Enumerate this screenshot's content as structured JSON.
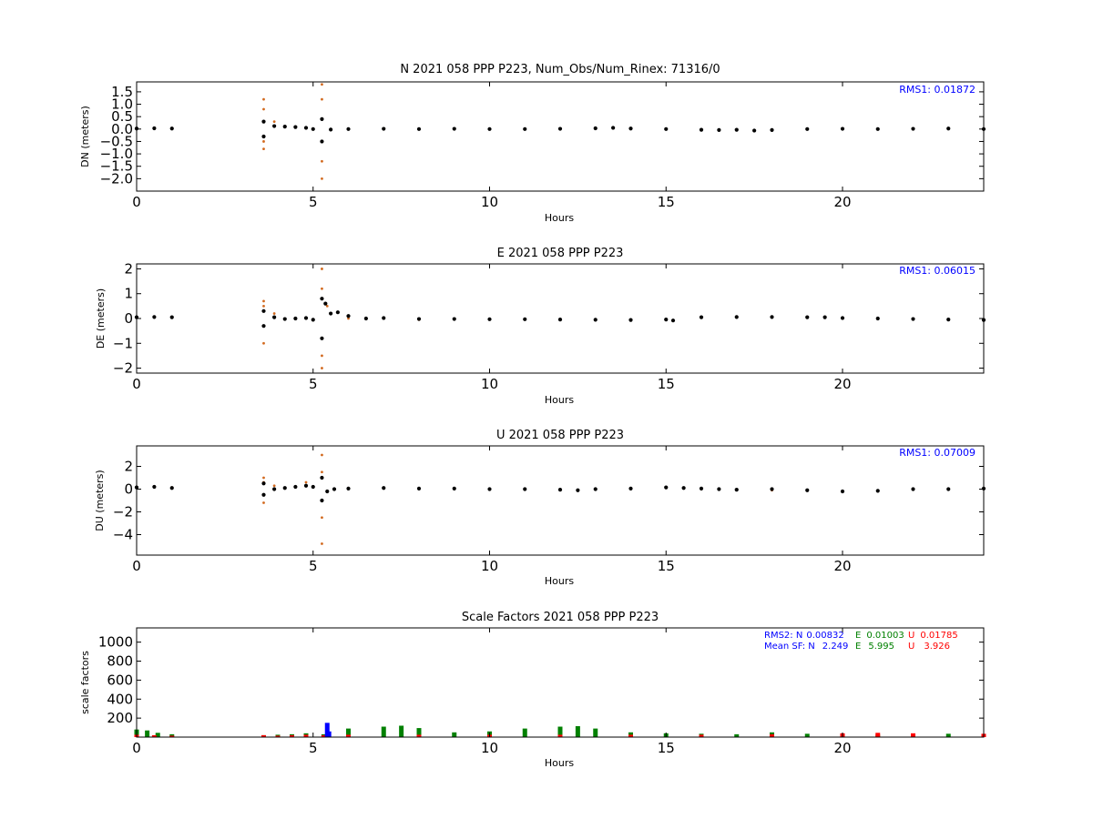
{
  "chart_data": [
    {
      "type": "scatter",
      "title": "N 2021 058 PPP  P223, Num_Obs/Num_Rinex: 71316/0",
      "xlabel": "Hours",
      "ylabel": "DN (meters)",
      "xlim": [
        0,
        24
      ],
      "ylim": [
        -2.5,
        1.9
      ],
      "xticks": [
        "0",
        "5",
        "10",
        "15",
        "20"
      ],
      "yticks": [
        "1.5",
        "1.0",
        "0.5",
        "0.0",
        "−0.5",
        "−1.0",
        "−1.5",
        "−2.0"
      ],
      "annotation": "RMS1:  0.01872",
      "series": [
        {
          "color": "#d2691e",
          "x": [
            0.0,
            0.5,
            1.0,
            3.6,
            3.6,
            3.6,
            3.6,
            3.9,
            5.25,
            5.25,
            5.25,
            5.25,
            7,
            9,
            12,
            13.5,
            16,
            17.5,
            20,
            22,
            24
          ],
          "y": [
            0.04,
            0.05,
            0.04,
            1.2,
            -0.8,
            0.8,
            -0.5,
            0.3,
            1.8,
            -2.0,
            1.2,
            -1.3,
            0.02,
            0.0,
            0.02,
            0.06,
            -0.04,
            -0.06,
            0.02,
            0.0,
            0.02
          ]
        },
        {
          "color": "#000000",
          "x": [
            0.0,
            0.5,
            1.0,
            3.6,
            3.6,
            3.9,
            4.2,
            4.5,
            4.8,
            5.0,
            5.25,
            5.25,
            5.5,
            6,
            7,
            8,
            9,
            10,
            11,
            12,
            13,
            13.5,
            14,
            15,
            16,
            16.5,
            17,
            17.5,
            18,
            19,
            20,
            21,
            22,
            23,
            24
          ],
          "y": [
            0.02,
            0.03,
            0.02,
            0.3,
            -0.3,
            0.12,
            0.1,
            0.08,
            0.05,
            0.0,
            0.4,
            -0.5,
            -0.02,
            0.0,
            0.01,
            0.0,
            0.01,
            0.0,
            0.0,
            0.01,
            0.03,
            0.05,
            0.02,
            0.0,
            -0.03,
            -0.04,
            -0.03,
            -0.06,
            -0.04,
            0.0,
            0.01,
            0.0,
            0.01,
            0.02,
            0.0
          ]
        }
      ]
    },
    {
      "type": "scatter",
      "title": "E 2021 058 PPP  P223",
      "xlabel": "Hours",
      "ylabel": "DE (meters)",
      "xlim": [
        0,
        24
      ],
      "ylim": [
        -2.2,
        2.2
      ],
      "xticks": [
        "0",
        "5",
        "10",
        "15",
        "20"
      ],
      "yticks": [
        "2",
        "1",
        "0",
        "−1",
        "−2"
      ],
      "annotation": "RMS1:  0.06015",
      "series": [
        {
          "color": "#d2691e",
          "x": [
            0.0,
            0.5,
            1.0,
            3.6,
            3.6,
            3.6,
            3.9,
            5.25,
            5.25,
            5.25,
            5.25,
            5.4,
            6,
            8,
            10,
            12,
            14,
            15,
            16,
            18,
            20,
            22,
            24
          ],
          "y": [
            0.05,
            0.06,
            0.05,
            0.7,
            -1.0,
            0.5,
            0.2,
            2.0,
            -2.0,
            1.2,
            -1.5,
            0.5,
            0.0,
            -0.05,
            -0.03,
            -0.03,
            -0.06,
            -0.05,
            0.05,
            0.06,
            0.02,
            -0.02,
            -0.05
          ]
        },
        {
          "color": "#000000",
          "x": [
            0.0,
            0.5,
            1.0,
            3.6,
            3.6,
            3.9,
            4.2,
            4.5,
            4.8,
            5.0,
            5.25,
            5.25,
            5.35,
            5.5,
            5.7,
            6,
            6.5,
            7,
            8,
            9,
            10,
            11,
            12,
            13,
            14,
            15,
            15.2,
            16,
            17,
            18,
            19,
            19.5,
            20,
            21,
            22,
            23,
            24
          ],
          "y": [
            0.05,
            0.06,
            0.05,
            0.3,
            -0.3,
            0.05,
            -0.02,
            0.0,
            0.02,
            -0.05,
            0.8,
            -0.8,
            0.6,
            0.2,
            0.25,
            0.1,
            0.0,
            0.02,
            -0.02,
            -0.02,
            -0.03,
            -0.03,
            -0.04,
            -0.05,
            -0.06,
            -0.04,
            -0.08,
            0.05,
            0.06,
            0.06,
            0.05,
            0.05,
            0.02,
            0.0,
            -0.02,
            -0.04,
            -0.06
          ]
        }
      ]
    },
    {
      "type": "scatter",
      "title": "U 2021 058 PPP  P223",
      "xlabel": "Hours",
      "ylabel": "DU (meters)",
      "xlim": [
        0,
        24
      ],
      "ylim": [
        -5.8,
        3.8
      ],
      "xticks": [
        "0",
        "5",
        "10",
        "15",
        "20"
      ],
      "yticks": [
        "2",
        "0",
        "−2",
        "−4"
      ],
      "annotation": "RMS1:  0.07009",
      "series": [
        {
          "color": "#d2691e",
          "x": [
            0.0,
            0.5,
            1.0,
            3.6,
            3.6,
            3.6,
            3.9,
            4.8,
            5.25,
            5.25,
            5.25,
            5.25,
            6,
            8,
            10,
            12,
            14,
            15,
            16,
            18,
            20,
            22,
            24
          ],
          "y": [
            0.2,
            0.25,
            0.15,
            1.0,
            -1.2,
            0.6,
            0.3,
            0.6,
            3.0,
            -4.8,
            1.5,
            -2.5,
            0.1,
            0.05,
            0.0,
            -0.05,
            0.05,
            0.1,
            0.0,
            -0.1,
            -0.2,
            0.0,
            0.1
          ]
        },
        {
          "color": "#000000",
          "x": [
            0.0,
            0.5,
            1.0,
            3.6,
            3.6,
            3.9,
            4.2,
            4.5,
            4.8,
            5.0,
            5.25,
            5.25,
            5.4,
            5.6,
            6,
            7,
            8,
            9,
            10,
            11,
            12,
            12.5,
            13,
            14,
            15,
            15.5,
            16,
            16.5,
            17,
            18,
            19,
            20,
            21,
            22,
            23,
            24
          ],
          "y": [
            0.15,
            0.2,
            0.1,
            0.5,
            -0.5,
            0.0,
            0.1,
            0.2,
            0.3,
            0.2,
            1.0,
            -1.0,
            -0.2,
            0.0,
            0.05,
            0.1,
            0.05,
            0.05,
            0.0,
            0.0,
            -0.05,
            -0.1,
            0.0,
            0.05,
            0.15,
            0.1,
            0.05,
            0.0,
            -0.05,
            0.0,
            -0.1,
            -0.2,
            -0.15,
            0.0,
            0.0,
            0.05
          ]
        }
      ]
    },
    {
      "type": "bar",
      "title": "Scale Factors 2021 058 PPP  P223",
      "xlabel": "Hours",
      "ylabel": "scale factors",
      "xlim": [
        0,
        24
      ],
      "ylim": [
        0,
        1150
      ],
      "xticks": [
        "0",
        "5",
        "10",
        "15",
        "20"
      ],
      "yticks": [
        "1000",
        "800",
        "600",
        "400",
        "200"
      ],
      "annotations": [
        {
          "label": "RMS2: N",
          "value": "0.00832",
          "color": "#0000ff"
        },
        {
          "label": "E",
          "value": "0.01003",
          "color": "#008000"
        },
        {
          "label": "U",
          "value": "0.01785",
          "color": "#ff0000"
        },
        {
          "label": "Mean SF: N",
          "value": "2.249",
          "color": "#0000ff"
        },
        {
          "label": "E",
          "value": "5.995",
          "color": "#008000"
        },
        {
          "label": "U",
          "value": "3.926",
          "color": "#ff0000"
        }
      ],
      "series": [
        {
          "color": "#008000",
          "x": [
            0.0,
            0.3,
            0.6,
            1.0,
            3.6,
            4.0,
            4.4,
            4.8,
            5.3,
            6,
            7,
            7.5,
            8,
            9,
            10,
            11,
            12,
            12.5,
            13,
            14,
            15,
            16,
            17,
            18,
            19,
            20,
            21,
            22,
            23,
            24
          ],
          "values": [
            80,
            70,
            45,
            30,
            20,
            25,
            30,
            40,
            30,
            90,
            110,
            120,
            95,
            50,
            60,
            90,
            110,
            115,
            90,
            50,
            40,
            35,
            30,
            50,
            35,
            30,
            25,
            30,
            35,
            30
          ]
        },
        {
          "color": "#ff0000",
          "x": [
            0.0,
            0.5,
            1.0,
            3.6,
            4.0,
            4.4,
            4.8,
            5.3,
            6,
            8,
            10,
            12,
            14,
            16,
            18,
            20,
            21,
            22,
            24
          ],
          "values": [
            25,
            20,
            15,
            20,
            15,
            20,
            25,
            20,
            25,
            25,
            25,
            25,
            25,
            25,
            30,
            40,
            45,
            40,
            35
          ]
        },
        {
          "color": "#0000ff",
          "x": [
            5.4,
            5.45
          ],
          "values": [
            150,
            60
          ]
        }
      ]
    }
  ]
}
